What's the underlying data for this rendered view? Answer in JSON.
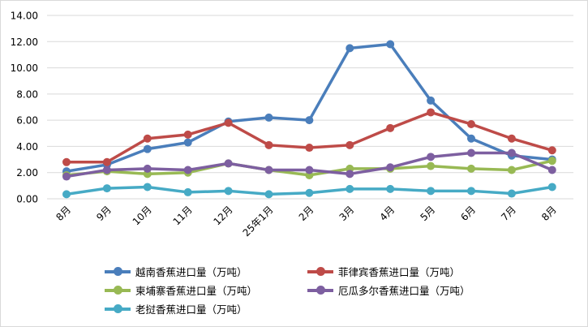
{
  "chart_data": {
    "type": "line",
    "title": "",
    "xlabel": "",
    "ylabel": "",
    "ylim": [
      0,
      14
    ],
    "yticks": [
      "0.00",
      "2.00",
      "4.00",
      "6.00",
      "8.00",
      "10.00",
      "12.00",
      "14.00"
    ],
    "grid": true,
    "legend_position": "bottom",
    "categories": [
      "8月",
      "9月",
      "10月",
      "11月",
      "12月",
      "25年1月",
      "2月",
      "3月",
      "4月",
      "5月",
      "6月",
      "7月",
      "8月"
    ],
    "series": [
      {
        "name": "越南香蕉进口量（万吨）",
        "color": "#4a7ebb",
        "values": [
          2.1,
          2.6,
          3.8,
          4.3,
          5.9,
          6.2,
          6.0,
          11.5,
          11.8,
          7.5,
          4.6,
          3.3,
          3.0
        ]
      },
      {
        "name": "菲律宾香蕉进口量（万吨）",
        "color": "#be4b48",
        "values": [
          2.8,
          2.8,
          4.6,
          4.9,
          5.8,
          4.1,
          3.9,
          4.1,
          5.4,
          6.6,
          5.7,
          4.6,
          3.7
        ]
      },
      {
        "name": "柬埔寨香蕉进口量（万吨）",
        "color": "#98b954",
        "values": [
          1.8,
          2.1,
          1.9,
          2.0,
          2.7,
          2.2,
          1.8,
          2.3,
          2.3,
          2.5,
          2.3,
          2.2,
          2.9
        ]
      },
      {
        "name": "厄瓜多尔香蕉进口量（万吨）",
        "color": "#7d5fa0",
        "values": [
          1.7,
          2.2,
          2.3,
          2.2,
          2.7,
          2.2,
          2.2,
          1.9,
          2.4,
          3.2,
          3.5,
          3.5,
          2.2
        ]
      },
      {
        "name": "老挝香蕉进口量（万吨）",
        "color": "#46aac5",
        "values": [
          0.35,
          0.8,
          0.9,
          0.5,
          0.6,
          0.35,
          0.45,
          0.75,
          0.75,
          0.6,
          0.6,
          0.4,
          0.9
        ]
      }
    ]
  }
}
